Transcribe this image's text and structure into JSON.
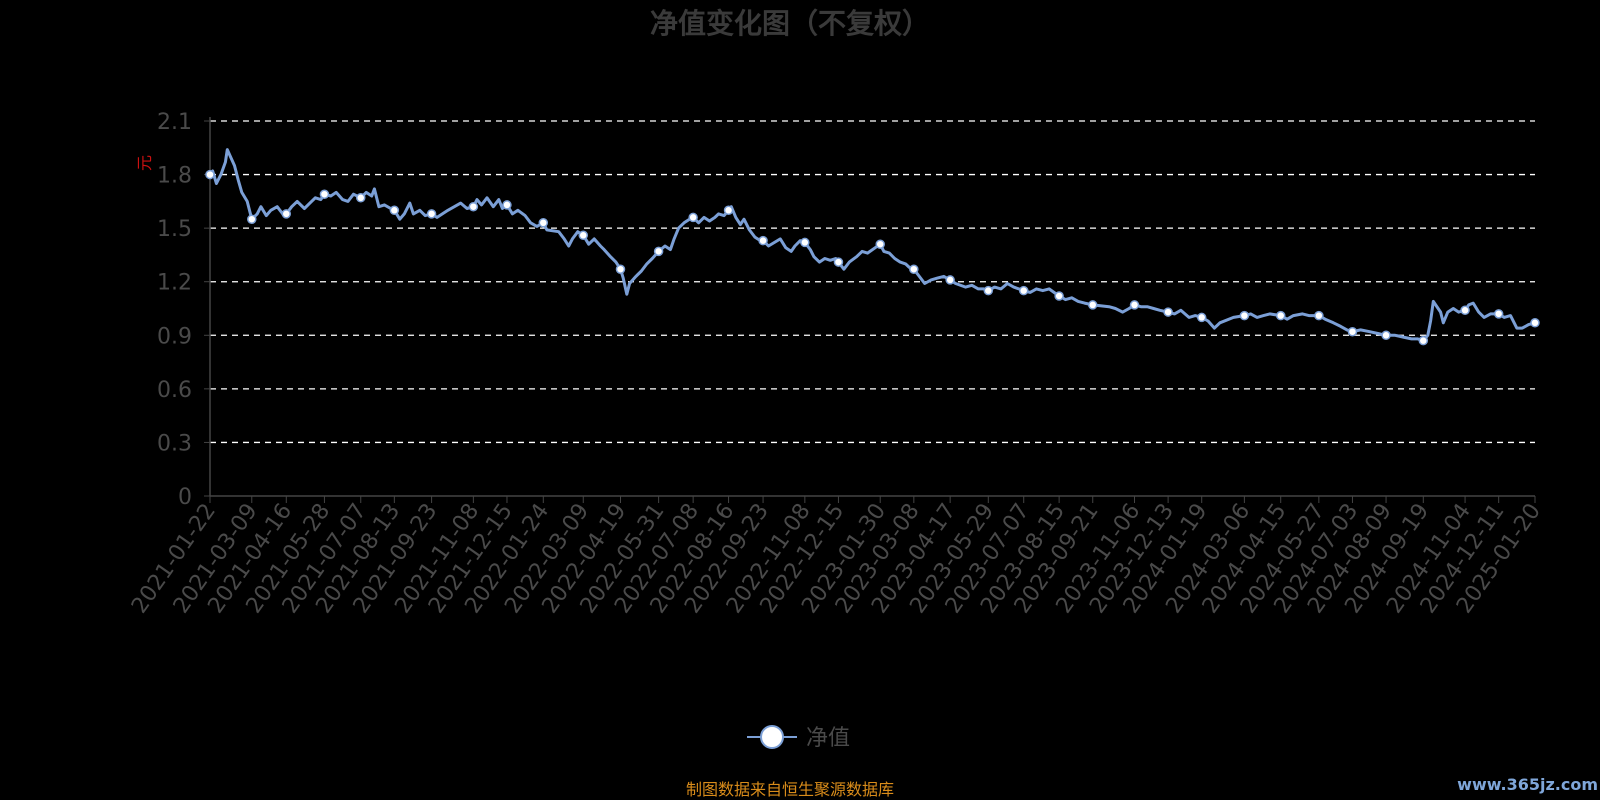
{
  "source_text": "制图数据来自恒生聚源数据库",
  "watermark": "www.365jz.com",
  "unit_label": "元",
  "colors": {
    "background": "#000000",
    "line": "#7b9fd6",
    "marker_fill": "#ffffff",
    "grid": "#ffffff",
    "axis": "#444444",
    "title": "#3a3a3a",
    "source": "#d98c1a",
    "unit": "#cc1111"
  },
  "chart_data": {
    "type": "line",
    "title": "净值变化图（不复权）",
    "xlabel": "",
    "ylabel": "",
    "ylim": [
      0,
      2.1
    ],
    "yticks": [
      "0",
      "0.3",
      "0.6",
      "0.9",
      "1.2",
      "1.5",
      "1.8",
      "2.1"
    ],
    "grid": true,
    "grid_style": "dashed",
    "legend_position": "bottom-center",
    "x_start": "2021-01-22",
    "x_end": "2025-01-20",
    "xticks": [
      "2021-01-22",
      "2021-03-09",
      "2021-04-16",
      "2021-05-28",
      "2021-07-07",
      "2021-08-13",
      "2021-09-23",
      "2021-11-08",
      "2021-12-15",
      "2022-01-24",
      "2022-03-09",
      "2022-04-19",
      "2022-05-31",
      "2022-07-08",
      "2022-08-16",
      "2022-09-23",
      "2022-11-08",
      "2022-12-15",
      "2023-01-30",
      "2023-03-08",
      "2023-04-17",
      "2023-05-29",
      "2023-07-07",
      "2023-08-15",
      "2023-09-21",
      "2023-11-06",
      "2023-12-13",
      "2024-01-19",
      "2024-03-06",
      "2024-04-15",
      "2024-05-27",
      "2024-07-03",
      "2024-08-09",
      "2024-09-19",
      "2024-11-04",
      "2024-12-11",
      "2025-01-20"
    ],
    "series": [
      {
        "name": "净值",
        "points": [
          [
            "2021-01-22",
            1.8
          ],
          [
            "2021-01-25",
            1.82
          ],
          [
            "2021-01-29",
            1.75
          ],
          [
            "2021-02-03",
            1.8
          ],
          [
            "2021-02-08",
            1.87
          ],
          [
            "2021-02-10",
            1.94
          ],
          [
            "2021-02-18",
            1.85
          ],
          [
            "2021-02-22",
            1.77
          ],
          [
            "2021-02-26",
            1.7
          ],
          [
            "2021-03-04",
            1.65
          ],
          [
            "2021-03-09",
            1.55
          ],
          [
            "2021-03-15",
            1.58
          ],
          [
            "2021-03-19",
            1.62
          ],
          [
            "2021-03-25",
            1.57
          ],
          [
            "2021-03-30",
            1.6
          ],
          [
            "2021-04-06",
            1.62
          ],
          [
            "2021-04-12",
            1.58
          ],
          [
            "2021-04-16",
            1.58
          ],
          [
            "2021-04-22",
            1.62
          ],
          [
            "2021-04-28",
            1.65
          ],
          [
            "2021-05-06",
            1.61
          ],
          [
            "2021-05-12",
            1.64
          ],
          [
            "2021-05-18",
            1.67
          ],
          [
            "2021-05-24",
            1.66
          ],
          [
            "2021-05-28",
            1.69
          ],
          [
            "2021-06-04",
            1.68
          ],
          [
            "2021-06-10",
            1.7
          ],
          [
            "2021-06-17",
            1.66
          ],
          [
            "2021-06-23",
            1.65
          ],
          [
            "2021-06-29",
            1.69
          ],
          [
            "2021-07-07",
            1.67
          ],
          [
            "2021-07-13",
            1.7
          ],
          [
            "2021-07-19",
            1.68
          ],
          [
            "2021-07-22",
            1.72
          ],
          [
            "2021-07-27",
            1.62
          ],
          [
            "2021-08-02",
            1.63
          ],
          [
            "2021-08-09",
            1.61
          ],
          [
            "2021-08-13",
            1.6
          ],
          [
            "2021-08-19",
            1.55
          ],
          [
            "2021-08-24",
            1.58
          ],
          [
            "2021-08-30",
            1.64
          ],
          [
            "2021-09-03",
            1.58
          ],
          [
            "2021-09-10",
            1.6
          ],
          [
            "2021-09-16",
            1.57
          ],
          [
            "2021-09-23",
            1.58
          ],
          [
            "2021-09-29",
            1.56
          ],
          [
            "2021-10-11",
            1.6
          ],
          [
            "2021-10-18",
            1.62
          ],
          [
            "2021-10-25",
            1.64
          ],
          [
            "2021-11-01",
            1.61
          ],
          [
            "2021-11-08",
            1.62
          ],
          [
            "2021-11-12",
            1.66
          ],
          [
            "2021-11-17",
            1.63
          ],
          [
            "2021-11-23",
            1.67
          ],
          [
            "2021-11-30",
            1.62
          ],
          [
            "2021-12-06",
            1.66
          ],
          [
            "2021-12-10",
            1.61
          ],
          [
            "2021-12-15",
            1.63
          ],
          [
            "2021-12-21",
            1.58
          ],
          [
            "2021-12-27",
            1.6
          ],
          [
            "2022-01-04",
            1.57
          ],
          [
            "2022-01-10",
            1.53
          ],
          [
            "2022-01-17",
            1.51
          ],
          [
            "2022-01-24",
            1.53
          ],
          [
            "2022-01-28",
            1.49
          ],
          [
            "2022-02-10",
            1.48
          ],
          [
            "2022-02-16",
            1.44
          ],
          [
            "2022-02-21",
            1.4
          ],
          [
            "2022-02-25",
            1.44
          ],
          [
            "2022-03-03",
            1.48
          ],
          [
            "2022-03-09",
            1.46
          ],
          [
            "2022-03-15",
            1.41
          ],
          [
            "2022-03-21",
            1.44
          ],
          [
            "2022-03-28",
            1.4
          ],
          [
            "2022-04-01",
            1.38
          ],
          [
            "2022-04-08",
            1.34
          ],
          [
            "2022-04-14",
            1.31
          ],
          [
            "2022-04-19",
            1.27
          ],
          [
            "2022-04-22",
            1.22
          ],
          [
            "2022-04-26",
            1.13
          ],
          [
            "2022-04-29",
            1.19
          ],
          [
            "2022-05-06",
            1.23
          ],
          [
            "2022-05-12",
            1.26
          ],
          [
            "2022-05-18",
            1.3
          ],
          [
            "2022-05-24",
            1.33
          ],
          [
            "2022-05-31",
            1.37
          ],
          [
            "2022-06-07",
            1.4
          ],
          [
            "2022-06-13",
            1.38
          ],
          [
            "2022-06-17",
            1.44
          ],
          [
            "2022-06-22",
            1.5
          ],
          [
            "2022-06-28",
            1.53
          ],
          [
            "2022-07-04",
            1.55
          ],
          [
            "2022-07-08",
            1.56
          ],
          [
            "2022-07-14",
            1.53
          ],
          [
            "2022-07-20",
            1.56
          ],
          [
            "2022-07-26",
            1.54
          ],
          [
            "2022-08-01",
            1.56
          ],
          [
            "2022-08-05",
            1.58
          ],
          [
            "2022-08-11",
            1.57
          ],
          [
            "2022-08-16",
            1.6
          ],
          [
            "2022-08-19",
            1.62
          ],
          [
            "2022-08-24",
            1.56
          ],
          [
            "2022-08-29",
            1.52
          ],
          [
            "2022-09-02",
            1.55
          ],
          [
            "2022-09-08",
            1.49
          ],
          [
            "2022-09-14",
            1.45
          ],
          [
            "2022-09-20",
            1.43
          ],
          [
            "2022-09-23",
            1.43
          ],
          [
            "2022-09-29",
            1.4
          ],
          [
            "2022-10-12",
            1.44
          ],
          [
            "2022-10-18",
            1.39
          ],
          [
            "2022-10-24",
            1.37
          ],
          [
            "2022-10-28",
            1.4
          ],
          [
            "2022-11-03",
            1.43
          ],
          [
            "2022-11-08",
            1.42
          ],
          [
            "2022-11-14",
            1.38
          ],
          [
            "2022-11-18",
            1.34
          ],
          [
            "2022-11-24",
            1.31
          ],
          [
            "2022-11-30",
            1.33
          ],
          [
            "2022-12-06",
            1.32
          ],
          [
            "2022-12-12",
            1.33
          ],
          [
            "2022-12-15",
            1.31
          ],
          [
            "2022-12-21",
            1.27
          ],
          [
            "2022-12-27",
            1.31
          ],
          [
            "2023-01-04",
            1.34
          ],
          [
            "2023-01-10",
            1.37
          ],
          [
            "2023-01-16",
            1.36
          ],
          [
            "2023-01-30",
            1.41
          ],
          [
            "2023-02-03",
            1.37
          ],
          [
            "2023-02-09",
            1.36
          ],
          [
            "2023-02-15",
            1.33
          ],
          [
            "2023-02-21",
            1.31
          ],
          [
            "2023-02-27",
            1.3
          ],
          [
            "2023-03-03",
            1.28
          ],
          [
            "2023-03-08",
            1.27
          ],
          [
            "2023-03-14",
            1.23
          ],
          [
            "2023-03-20",
            1.19
          ],
          [
            "2023-03-27",
            1.21
          ],
          [
            "2023-04-03",
            1.22
          ],
          [
            "2023-04-10",
            1.23
          ],
          [
            "2023-04-17",
            1.21
          ],
          [
            "2023-04-23",
            1.19
          ],
          [
            "2023-05-04",
            1.17
          ],
          [
            "2023-05-11",
            1.18
          ],
          [
            "2023-05-18",
            1.16
          ],
          [
            "2023-05-24",
            1.16
          ],
          [
            "2023-05-29",
            1.15
          ],
          [
            "2023-06-05",
            1.17
          ],
          [
            "2023-06-12",
            1.16
          ],
          [
            "2023-06-19",
            1.19
          ],
          [
            "2023-06-26",
            1.17
          ],
          [
            "2023-07-07",
            1.15
          ],
          [
            "2023-07-14",
            1.14
          ],
          [
            "2023-07-21",
            1.16
          ],
          [
            "2023-07-28",
            1.15
          ],
          [
            "2023-08-04",
            1.16
          ],
          [
            "2023-08-15",
            1.12
          ],
          [
            "2023-08-22",
            1.1
          ],
          [
            "2023-08-29",
            1.11
          ],
          [
            "2023-09-05",
            1.09
          ],
          [
            "2023-09-12",
            1.08
          ],
          [
            "2023-09-21",
            1.07
          ],
          [
            "2023-10-09",
            1.06
          ],
          [
            "2023-10-16",
            1.05
          ],
          [
            "2023-10-24",
            1.03
          ],
          [
            "2023-10-31",
            1.05
          ],
          [
            "2023-11-06",
            1.07
          ],
          [
            "2023-11-13",
            1.06
          ],
          [
            "2023-11-20",
            1.06
          ],
          [
            "2023-11-27",
            1.05
          ],
          [
            "2023-12-04",
            1.04
          ],
          [
            "2023-12-13",
            1.03
          ],
          [
            "2023-12-20",
            1.02
          ],
          [
            "2023-12-27",
            1.04
          ],
          [
            "2024-01-05",
            1.0
          ],
          [
            "2024-01-12",
            1.01
          ],
          [
            "2024-01-19",
            1.0
          ],
          [
            "2024-01-26",
            0.98
          ],
          [
            "2024-02-02",
            0.94
          ],
          [
            "2024-02-08",
            0.97
          ],
          [
            "2024-02-23",
            1.0
          ],
          [
            "2024-03-06",
            1.01
          ],
          [
            "2024-03-13",
            1.02
          ],
          [
            "2024-03-20",
            1.0
          ],
          [
            "2024-03-27",
            1.01
          ],
          [
            "2024-04-03",
            1.02
          ],
          [
            "2024-04-15",
            1.01
          ],
          [
            "2024-04-22",
            0.99
          ],
          [
            "2024-04-29",
            1.01
          ],
          [
            "2024-05-09",
            1.02
          ],
          [
            "2024-05-16",
            1.01
          ],
          [
            "2024-05-27",
            1.01
          ],
          [
            "2024-06-03",
            0.99
          ],
          [
            "2024-06-12",
            0.97
          ],
          [
            "2024-06-20",
            0.95
          ],
          [
            "2024-06-27",
            0.93
          ],
          [
            "2024-07-03",
            0.92
          ],
          [
            "2024-07-12",
            0.93
          ],
          [
            "2024-07-22",
            0.92
          ],
          [
            "2024-07-31",
            0.91
          ],
          [
            "2024-08-09",
            0.9
          ],
          [
            "2024-08-19",
            0.9
          ],
          [
            "2024-08-28",
            0.89
          ],
          [
            "2024-09-06",
            0.88
          ],
          [
            "2024-09-13",
            0.88
          ],
          [
            "2024-09-19",
            0.87
          ],
          [
            "2024-09-24",
            0.9
          ],
          [
            "2024-09-27",
            0.98
          ],
          [
            "2024-09-30",
            1.09
          ],
          [
            "2024-10-08",
            1.03
          ],
          [
            "2024-10-11",
            0.97
          ],
          [
            "2024-10-16",
            1.03
          ],
          [
            "2024-10-22",
            1.05
          ],
          [
            "2024-10-28",
            1.03
          ],
          [
            "2024-11-04",
            1.04
          ],
          [
            "2024-11-08",
            1.07
          ],
          [
            "2024-11-13",
            1.08
          ],
          [
            "2024-11-19",
            1.03
          ],
          [
            "2024-11-25",
            1.0
          ],
          [
            "2024-12-02",
            1.02
          ],
          [
            "2024-12-11",
            1.02
          ],
          [
            "2024-12-17",
            1.0
          ],
          [
            "2024-12-24",
            1.01
          ],
          [
            "2024-12-31",
            0.94
          ],
          [
            "2025-01-06",
            0.94
          ],
          [
            "2025-01-13",
            0.96
          ],
          [
            "2025-01-20",
            0.97
          ]
        ],
        "markers": [
          "2021-01-22",
          "2021-03-09",
          "2021-04-16",
          "2021-05-28",
          "2021-07-07",
          "2021-08-13",
          "2021-09-23",
          "2021-11-08",
          "2021-12-15",
          "2022-01-24",
          "2022-03-09",
          "2022-04-19",
          "2022-05-31",
          "2022-07-08",
          "2022-08-16",
          "2022-09-23",
          "2022-11-08",
          "2022-12-15",
          "2023-01-30",
          "2023-03-08",
          "2023-04-17",
          "2023-05-29",
          "2023-07-07",
          "2023-08-15",
          "2023-09-21",
          "2023-11-06",
          "2023-12-13",
          "2024-01-19",
          "2024-03-06",
          "2024-04-15",
          "2024-05-27",
          "2024-07-03",
          "2024-08-09",
          "2024-09-19",
          "2024-11-04",
          "2024-12-11",
          "2025-01-20"
        ]
      }
    ]
  }
}
